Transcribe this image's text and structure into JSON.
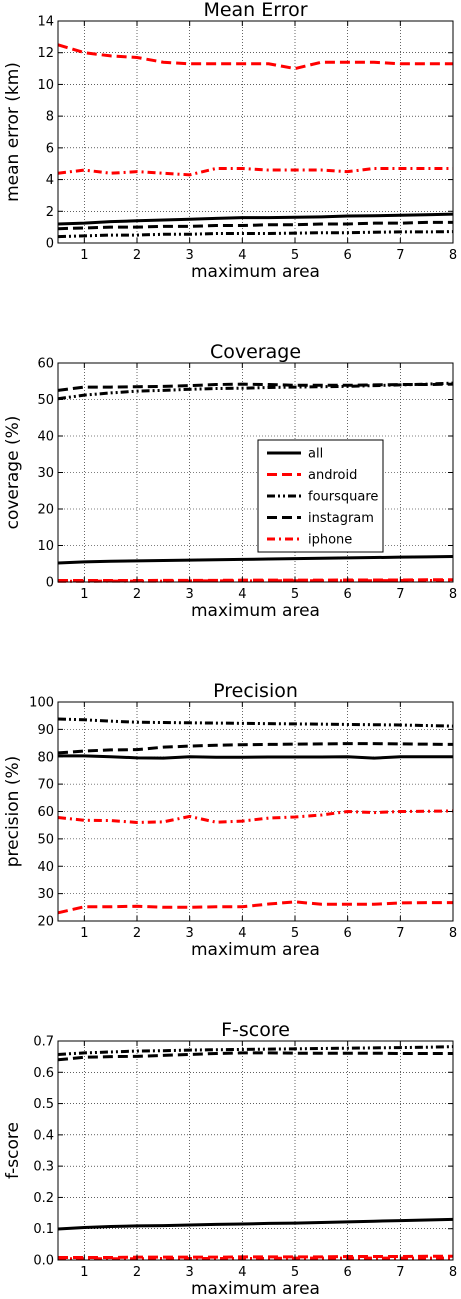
{
  "chart_data": [
    {
      "type": "line",
      "title": "Mean Error",
      "xlabel": "maximum area",
      "ylabel": "mean error (km)",
      "xlim": [
        0.5,
        8
      ],
      "ylim": [
        0,
        14
      ],
      "xticks": [
        1,
        2,
        3,
        4,
        5,
        6,
        7,
        8
      ],
      "yticks": [
        0,
        2,
        4,
        6,
        8,
        10,
        12,
        14
      ],
      "grid": true,
      "x": [
        0.5,
        1,
        1.5,
        2,
        2.5,
        3,
        3.5,
        4,
        4.5,
        5,
        5.5,
        6,
        6.5,
        7,
        7.5,
        8
      ],
      "series": [
        {
          "name": "all",
          "color": "#000000",
          "dash": "solid",
          "values": [
            1.2,
            1.25,
            1.35,
            1.4,
            1.45,
            1.5,
            1.55,
            1.6,
            1.6,
            1.62,
            1.65,
            1.7,
            1.72,
            1.75,
            1.78,
            1.82
          ]
        },
        {
          "name": "android",
          "color": "#ff0000",
          "dash": "dashed",
          "values": [
            12.5,
            12.0,
            11.8,
            11.7,
            11.4,
            11.3,
            11.3,
            11.3,
            11.3,
            11.0,
            11.4,
            11.4,
            11.4,
            11.3,
            11.3,
            11.3
          ]
        },
        {
          "name": "foursquare",
          "color": "#000000",
          "dash": "dashdotdot",
          "values": [
            0.4,
            0.45,
            0.5,
            0.5,
            0.55,
            0.55,
            0.6,
            0.6,
            0.6,
            0.62,
            0.65,
            0.65,
            0.68,
            0.7,
            0.7,
            0.72
          ]
        },
        {
          "name": "instagram",
          "color": "#000000",
          "dash": "dashed",
          "values": [
            0.9,
            0.95,
            1.0,
            1.0,
            1.05,
            1.05,
            1.1,
            1.1,
            1.15,
            1.15,
            1.2,
            1.2,
            1.25,
            1.25,
            1.3,
            1.3
          ]
        },
        {
          "name": "iphone",
          "color": "#ff0000",
          "dash": "dashdot",
          "values": [
            4.4,
            4.6,
            4.4,
            4.5,
            4.4,
            4.3,
            4.7,
            4.7,
            4.6,
            4.6,
            4.6,
            4.5,
            4.7,
            4.7,
            4.7,
            4.7
          ]
        }
      ]
    },
    {
      "type": "line",
      "title": "Coverage",
      "xlabel": "maximum area",
      "ylabel": "coverage (%)",
      "xlim": [
        0.5,
        8
      ],
      "ylim": [
        0,
        60
      ],
      "xticks": [
        1,
        2,
        3,
        4,
        5,
        6,
        7,
        8
      ],
      "yticks": [
        0,
        10,
        20,
        30,
        40,
        50,
        60
      ],
      "grid": true,
      "legend": "center-right",
      "x": [
        0.5,
        1,
        1.5,
        2,
        2.5,
        3,
        3.5,
        4,
        4.5,
        5,
        5.5,
        6,
        6.5,
        7,
        7.5,
        8
      ],
      "series": [
        {
          "name": "all",
          "color": "#000000",
          "dash": "solid",
          "values": [
            5.2,
            5.5,
            5.7,
            5.8,
            5.9,
            6.0,
            6.1,
            6.2,
            6.3,
            6.4,
            6.5,
            6.6,
            6.7,
            6.8,
            6.9,
            7.0
          ]
        },
        {
          "name": "android",
          "color": "#ff0000",
          "dash": "dashed",
          "values": [
            0.4,
            0.4,
            0.4,
            0.4,
            0.45,
            0.45,
            0.45,
            0.5,
            0.5,
            0.5,
            0.5,
            0.55,
            0.55,
            0.55,
            0.6,
            0.6
          ]
        },
        {
          "name": "foursquare",
          "color": "#000000",
          "dash": "dashdotdot",
          "values": [
            50.2,
            51.2,
            51.8,
            52.3,
            52.5,
            52.8,
            53.0,
            53.1,
            53.3,
            53.4,
            53.5,
            53.6,
            53.8,
            54.0,
            54.2,
            54.5
          ]
        },
        {
          "name": "instagram",
          "color": "#000000",
          "dash": "dashed",
          "values": [
            52.5,
            53.4,
            53.4,
            53.5,
            53.6,
            53.8,
            54.1,
            54.2,
            54.1,
            53.9,
            53.9,
            53.9,
            54.0,
            54.1,
            54.1,
            54.2
          ]
        },
        {
          "name": "iphone",
          "color": "#ff0000",
          "dash": "dashdot",
          "values": [
            0.2,
            0.2,
            0.25,
            0.25,
            0.25,
            0.3,
            0.3,
            0.3,
            0.3,
            0.35,
            0.35,
            0.35,
            0.35,
            0.4,
            0.4,
            0.4
          ]
        }
      ]
    },
    {
      "type": "line",
      "title": "Precision",
      "xlabel": "maximum area",
      "ylabel": "precision (%)",
      "xlim": [
        0.5,
        8
      ],
      "ylim": [
        20,
        100
      ],
      "xticks": [
        1,
        2,
        3,
        4,
        5,
        6,
        7,
        8
      ],
      "yticks": [
        20,
        30,
        40,
        50,
        60,
        70,
        80,
        90,
        100
      ],
      "grid": true,
      "x": [
        0.5,
        1,
        1.5,
        2,
        2.5,
        3,
        3.5,
        4,
        4.5,
        5,
        5.5,
        6,
        6.5,
        7,
        7.5,
        8
      ],
      "series": [
        {
          "name": "all",
          "color": "#000000",
          "dash": "solid",
          "values": [
            80.3,
            80.3,
            80.0,
            79.6,
            79.5,
            80.0,
            79.8,
            79.8,
            79.9,
            79.9,
            79.9,
            80.0,
            79.5,
            80.0,
            80.0,
            80.0
          ]
        },
        {
          "name": "android",
          "color": "#ff0000",
          "dash": "dashed",
          "values": [
            23.0,
            25.2,
            25.2,
            25.4,
            25.0,
            25.0,
            25.2,
            25.2,
            26.2,
            27.0,
            26.1,
            26.1,
            26.1,
            26.6,
            26.7,
            26.7
          ]
        },
        {
          "name": "foursquare",
          "color": "#000000",
          "dash": "dashdotdot",
          "values": [
            93.8,
            93.5,
            93.0,
            92.6,
            92.5,
            92.4,
            92.3,
            92.2,
            92.1,
            92.0,
            91.9,
            91.8,
            91.7,
            91.6,
            91.4,
            91.2
          ]
        },
        {
          "name": "instagram",
          "color": "#000000",
          "dash": "dashed",
          "values": [
            81.4,
            82.1,
            82.5,
            82.6,
            83.5,
            83.9,
            84.2,
            84.4,
            84.5,
            84.6,
            84.7,
            84.8,
            84.8,
            84.7,
            84.6,
            84.5
          ]
        },
        {
          "name": "iphone",
          "color": "#ff0000",
          "dash": "dashdot",
          "values": [
            57.8,
            56.8,
            56.7,
            56.0,
            56.2,
            58.2,
            56.1,
            56.5,
            57.6,
            58.0,
            58.7,
            60.0,
            59.6,
            60.0,
            60.1,
            60.2
          ]
        }
      ]
    },
    {
      "type": "line",
      "title": "F-score",
      "xlabel": "maximum area",
      "ylabel": "f-score",
      "xlim": [
        0.5,
        8
      ],
      "ylim": [
        0,
        0.7
      ],
      "xticks": [
        1,
        2,
        3,
        4,
        5,
        6,
        7,
        8
      ],
      "yticks": [
        0.0,
        0.1,
        0.2,
        0.3,
        0.4,
        0.5,
        0.6,
        0.7
      ],
      "grid": true,
      "x": [
        0.5,
        1,
        1.5,
        2,
        2.5,
        3,
        3.5,
        4,
        4.5,
        5,
        5.5,
        6,
        6.5,
        7,
        7.5,
        8
      ],
      "series": [
        {
          "name": "all",
          "color": "#000000",
          "dash": "solid",
          "values": [
            0.099,
            0.104,
            0.107,
            0.109,
            0.11,
            0.112,
            0.114,
            0.115,
            0.117,
            0.118,
            0.12,
            0.122,
            0.124,
            0.126,
            0.128,
            0.13
          ]
        },
        {
          "name": "android",
          "color": "#ff0000",
          "dash": "dashed",
          "values": [
            0.008,
            0.008,
            0.008,
            0.009,
            0.009,
            0.009,
            0.009,
            0.01,
            0.01,
            0.01,
            0.01,
            0.011,
            0.011,
            0.011,
            0.012,
            0.012
          ]
        },
        {
          "name": "foursquare",
          "color": "#000000",
          "dash": "dashdotdot",
          "values": [
            0.657,
            0.662,
            0.665,
            0.668,
            0.669,
            0.671,
            0.672,
            0.673,
            0.674,
            0.675,
            0.676,
            0.677,
            0.678,
            0.679,
            0.68,
            0.682
          ]
        },
        {
          "name": "instagram",
          "color": "#000000",
          "dash": "dashed",
          "values": [
            0.64,
            0.648,
            0.65,
            0.651,
            0.654,
            0.657,
            0.66,
            0.662,
            0.662,
            0.661,
            0.661,
            0.661,
            0.661,
            0.66,
            0.66,
            0.66
          ]
        },
        {
          "name": "iphone",
          "color": "#ff0000",
          "dash": "dashdot",
          "values": [
            0.004,
            0.004,
            0.004,
            0.004,
            0.005,
            0.005,
            0.005,
            0.005,
            0.005,
            0.006,
            0.006,
            0.006,
            0.006,
            0.006,
            0.006,
            0.006
          ]
        }
      ]
    }
  ]
}
